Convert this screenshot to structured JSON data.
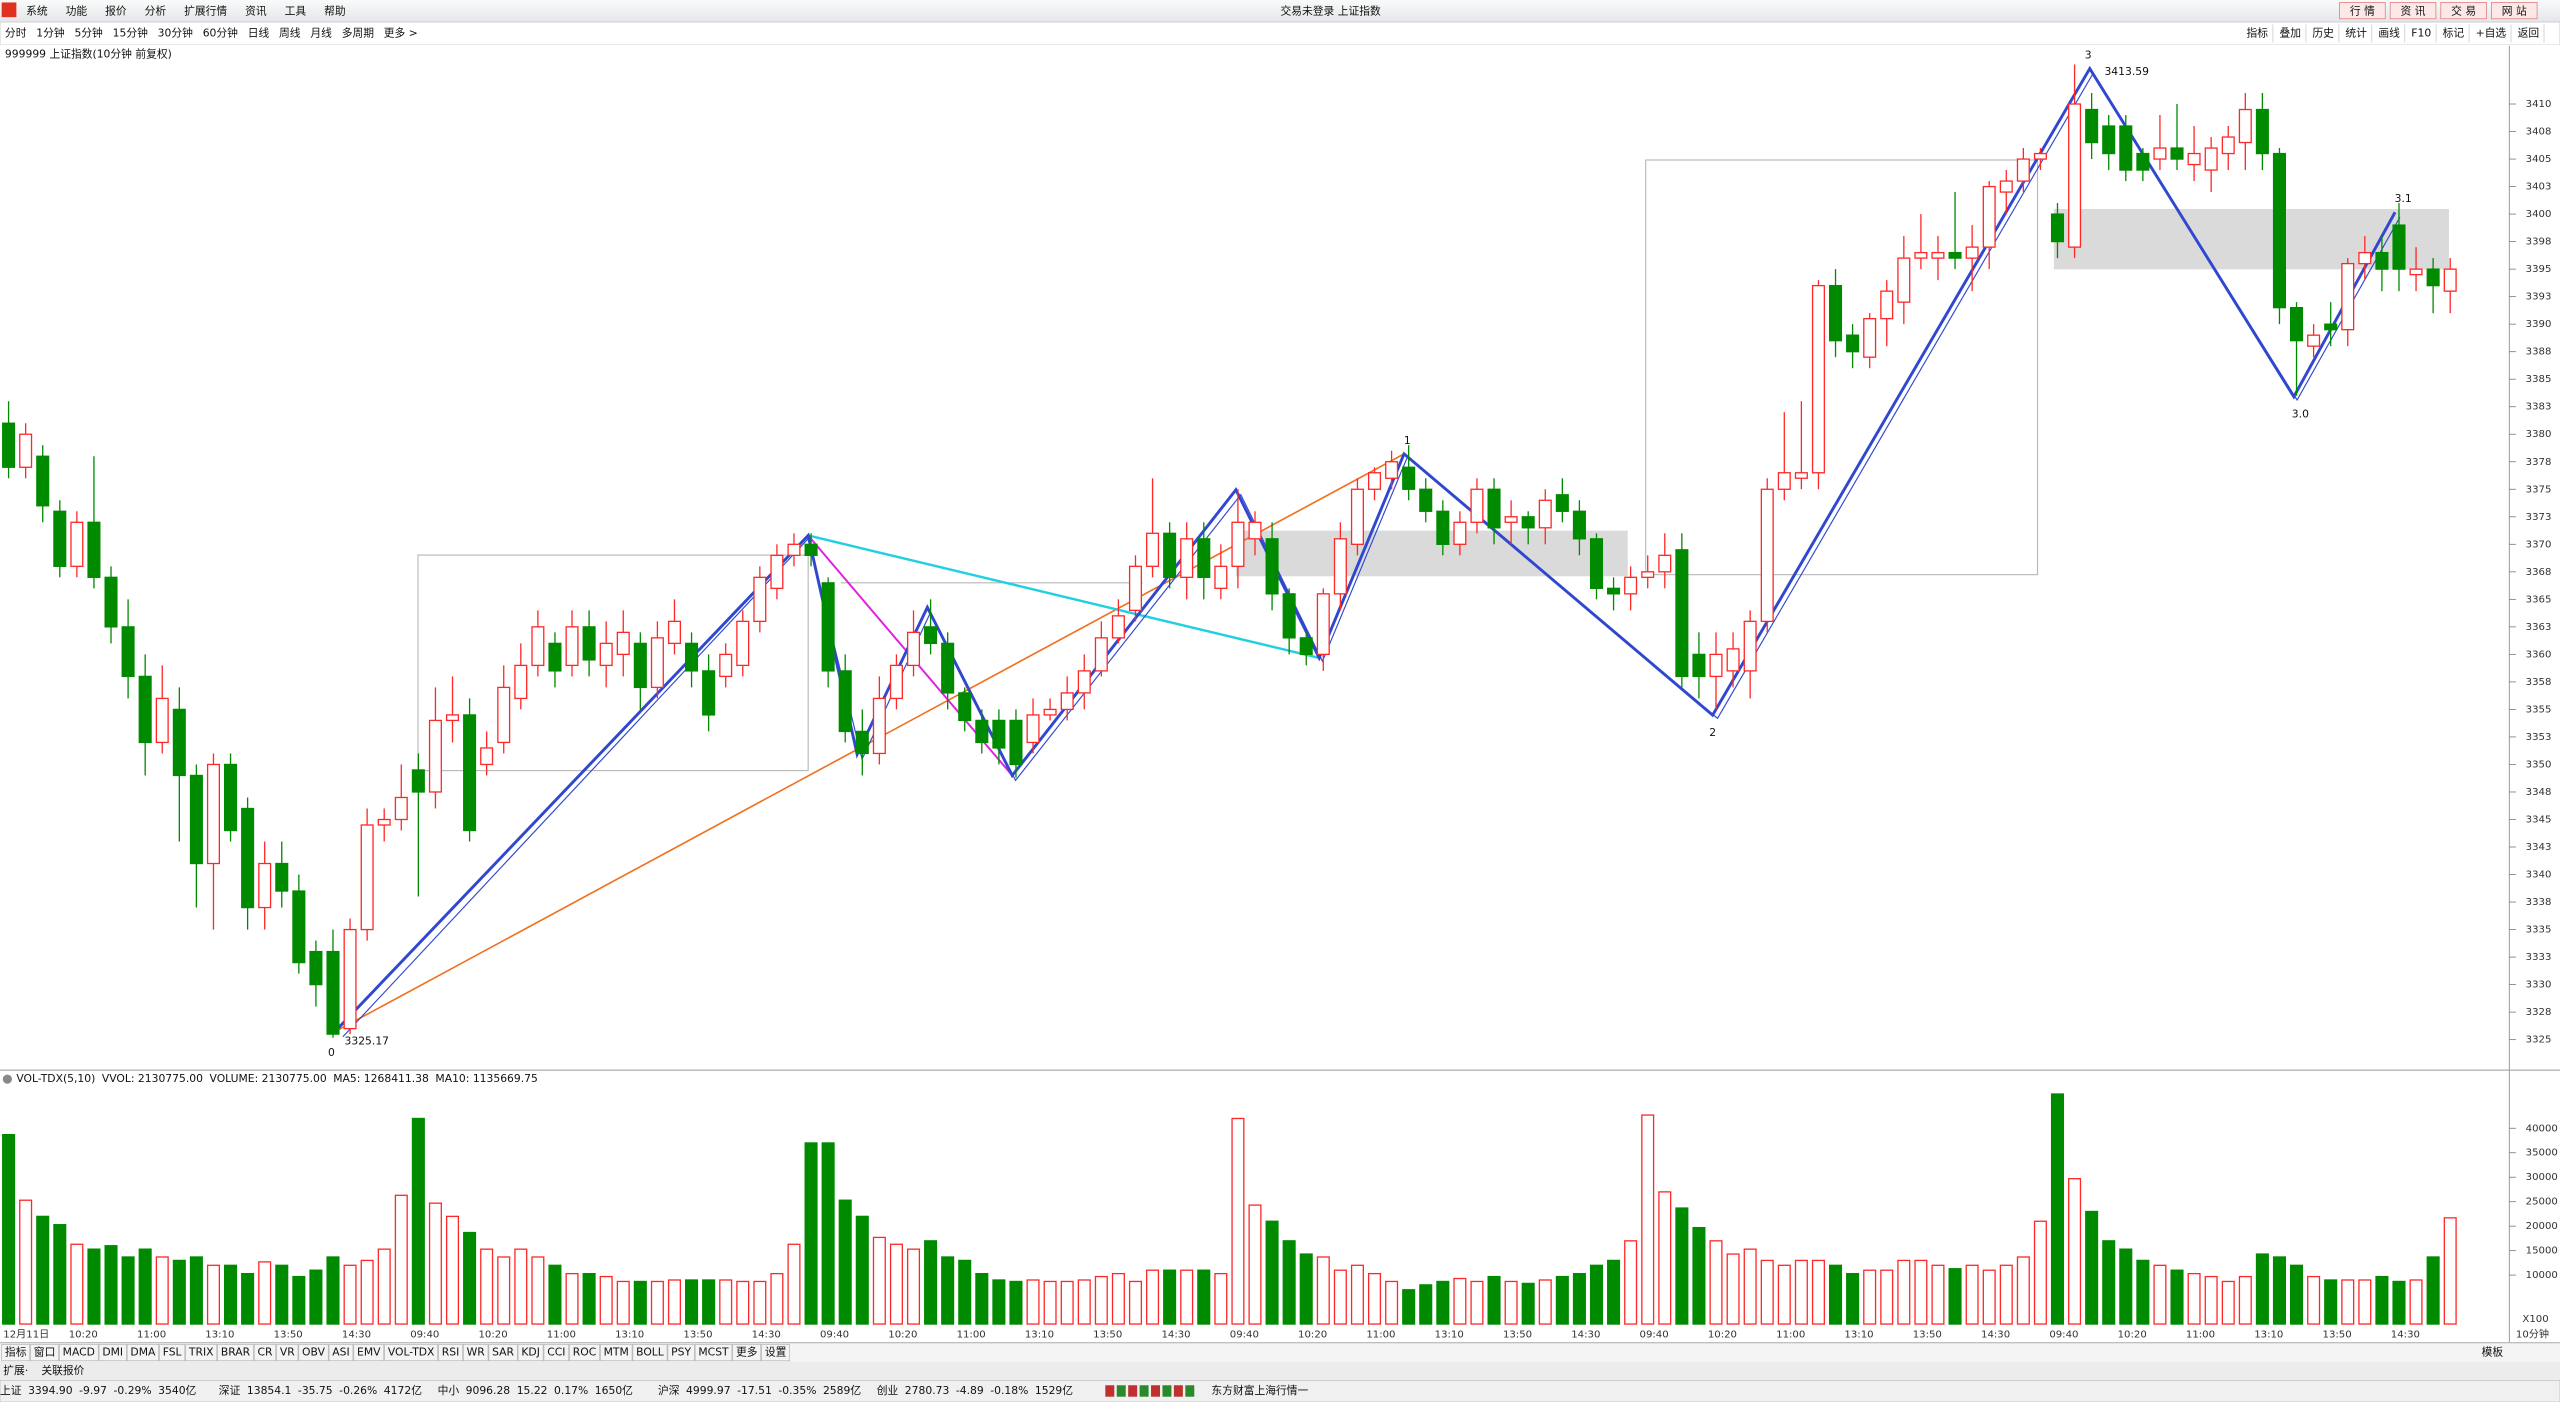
{
  "menu": [
    "系统",
    "功能",
    "报价",
    "分析",
    "扩展行情",
    "资讯",
    "工具",
    "帮助"
  ],
  "login_status": "交易未登录  上证指数",
  "quick_buttons": [
    "行 情",
    "资 讯",
    "交 易",
    "网 站"
  ],
  "periods": [
    "分时",
    "1分钟",
    "5分钟",
    "15分钟",
    "30分钟",
    "60分钟",
    "日线",
    "周线",
    "月线",
    "多周期",
    "更多 >"
  ],
  "tools": [
    "指标",
    "叠加",
    "历史",
    "统计",
    "画线",
    "F10",
    "标记",
    "+自选",
    "返回"
  ],
  "chart_data": [
    {
      "type": "candlestick",
      "title": "999999 上证指数(10分钟 前复权)",
      "up_color": "#ff2828",
      "down_color": "#008a00",
      "categories": [
        "12月11日",
        null,
        null,
        null,
        "10:20",
        null,
        null,
        null,
        "11:00",
        null,
        null,
        null,
        "13:10",
        null,
        null,
        null,
        "13:50",
        null,
        null,
        null,
        "14:30",
        null,
        null,
        null,
        "09:40",
        null,
        null,
        null,
        "10:20",
        null,
        null,
        null,
        "11:00",
        null,
        null,
        null,
        "13:10",
        null,
        null,
        null,
        "13:50",
        null,
        null,
        null,
        "14:30",
        null,
        null,
        null,
        "09:40",
        null,
        null,
        null,
        "10:20",
        null,
        null,
        null,
        "11:00",
        null,
        null,
        null,
        "13:10",
        null,
        null,
        null,
        "13:50",
        null,
        null,
        null,
        "14:30",
        null,
        null,
        null,
        "09:40",
        null,
        null,
        null,
        "10:20",
        null,
        null,
        null,
        "11:00",
        null,
        null,
        null,
        "13:10",
        null,
        null,
        null,
        "13:50",
        null,
        null,
        null,
        "14:30",
        null,
        null,
        null,
        "09:40",
        null,
        null,
        null,
        "10:20",
        null,
        null,
        null,
        "11:00",
        null,
        null,
        null,
        "13:10",
        null,
        null,
        null,
        "13:50",
        null,
        null,
        null,
        "14:30",
        null,
        null,
        null,
        "09:40",
        null,
        null,
        null,
        "10:20",
        null,
        null,
        null,
        "11:00",
        null,
        null,
        null,
        "13:10",
        null,
        null,
        null,
        "13:50",
        null,
        null,
        null,
        "14:30",
        null,
        null,
        null
      ],
      "open": [
        3381,
        3377,
        3378,
        3373,
        3368,
        3372,
        3367,
        3362.5,
        3358,
        3352,
        3355,
        3349,
        3341,
        3350,
        3346,
        3337,
        3341,
        3338.5,
        3333,
        3333,
        3326,
        3335,
        3344.5,
        3345,
        3349.5,
        3347.5,
        3354,
        3354.5,
        3350,
        3352,
        3356,
        3359,
        3361,
        3359,
        3362.5,
        3359,
        3360,
        3361,
        3357,
        3361,
        3361,
        3358.5,
        3358,
        3359,
        3363,
        3366,
        3369,
        3370,
        3366.5,
        3358.5,
        3353,
        3351,
        3356,
        3359,
        3362.5,
        3361,
        3356.5,
        3354,
        3354,
        3354,
        3352,
        3354.5,
        3355,
        3356.5,
        3358.5,
        3361.5,
        3364,
        3368,
        3371,
        3367,
        3370.5,
        3366,
        3368,
        3370.5,
        3370.5,
        3365.5,
        3361.5,
        3360,
        3365.5,
        3370,
        3375,
        3376,
        3377,
        3375,
        3373,
        3370,
        3372,
        3375,
        3372,
        3372.5,
        3371.5,
        3374.5,
        3373,
        3370.5,
        3366,
        3365.5,
        3367,
        3367.5,
        3369.5,
        3360,
        3358,
        3358.5,
        3358.5,
        3363,
        3375,
        3376,
        3376.5,
        3393.5,
        3389,
        3387,
        3390.5,
        3392,
        3396,
        3396,
        3396.5,
        3396,
        3397,
        3402,
        3403,
        3405,
        3400,
        3397,
        3409.5,
        3408,
        3408,
        3405.5,
        3405,
        3406,
        3404.5,
        3404,
        3405.5,
        3406.5,
        3409.5,
        3405.5,
        3391.5,
        3388,
        3390,
        3389.5,
        3395.5,
        3396.5,
        3399,
        3394.5,
        3395,
        3393
      ],
      "high": [
        3383,
        3381,
        3379,
        3374,
        3373,
        3378,
        3368,
        3365,
        3360,
        3359,
        3357,
        3350,
        3351,
        3351,
        3347,
        3343,
        3343,
        3340,
        3334,
        3335,
        3336,
        3346,
        3346,
        3350,
        3351,
        3357,
        3358,
        3356,
        3353,
        3359,
        3361,
        3364,
        3362,
        3364,
        3364,
        3363,
        3364,
        3362,
        3363,
        3365,
        3362,
        3360,
        3361,
        3364,
        3368,
        3370,
        3371,
        3371,
        3367,
        3360,
        3355,
        3358,
        3360,
        3364,
        3365,
        3362,
        3357,
        3355,
        3355,
        3355,
        3356,
        3356,
        3358,
        3360,
        3363,
        3365,
        3369,
        3376,
        3372,
        3372,
        3372,
        3370,
        3375,
        3373,
        3372,
        3366,
        3362,
        3366,
        3372,
        3376,
        3377,
        3378.5,
        3379,
        3376,
        3374,
        3373,
        3376,
        3376,
        3374,
        3373,
        3375,
        3376,
        3374,
        3371,
        3367,
        3368,
        3369,
        3371,
        3371,
        3362,
        3362,
        3362,
        3364,
        3376,
        3382,
        3383,
        3394,
        3395,
        3390,
        3391,
        3394,
        3398,
        3400,
        3398,
        3402,
        3399,
        3403,
        3404,
        3406,
        3406,
        3401,
        3413.59,
        3411,
        3409,
        3409,
        3406,
        3409,
        3410,
        3408,
        3407,
        3408,
        3411,
        3411,
        3406,
        3392,
        3390,
        3392,
        3396,
        3398,
        3398,
        3401,
        3397,
        3396,
        3396
      ],
      "low": [
        3376,
        3376,
        3372,
        3367,
        3367,
        3366,
        3361,
        3356,
        3349,
        3351,
        3343,
        3337,
        3335,
        3343,
        3335,
        3335,
        3337,
        3331,
        3328,
        3325.17,
        3325.5,
        3334,
        3343,
        3344,
        3338,
        3346,
        3352,
        3343,
        3349,
        3351,
        3355,
        3358,
        3357,
        3358,
        3358,
        3357,
        3358,
        3355,
        3356,
        3360,
        3357,
        3353,
        3357,
        3358,
        3362,
        3365,
        3368,
        3368,
        3357,
        3352,
        3349,
        3350,
        3355,
        3358,
        3360,
        3355,
        3353,
        3351,
        3350,
        3348.8,
        3351,
        3354,
        3354,
        3355,
        3358,
        3361,
        3363,
        3367,
        3366,
        3365,
        3365,
        3365,
        3366,
        3369,
        3364,
        3360,
        3359,
        3358.5,
        3364,
        3369,
        3374,
        3375,
        3374,
        3372,
        3369,
        3369,
        3371,
        3370,
        3370,
        3370,
        3370,
        3372,
        3369,
        3365,
        3364,
        3364,
        3366,
        3366,
        3357,
        3356,
        3355,
        3357,
        3356,
        3362,
        3374,
        3375,
        3375,
        3387,
        3386,
        3386,
        3388,
        3390,
        3395,
        3394,
        3395,
        3393,
        3395,
        3400,
        3402,
        3404,
        3396,
        3396,
        3405,
        3404,
        3403,
        3403,
        3404,
        3404,
        3403,
        3402,
        3404,
        3404,
        3404,
        3390,
        3383.5,
        3387,
        3388,
        3388,
        3394,
        3393,
        3393,
        3393,
        3391,
        3391
      ],
      "close": [
        3377,
        3380,
        3373.5,
        3368,
        3372,
        3367,
        3362.5,
        3358,
        3352,
        3356,
        3349,
        3341,
        3350,
        3344,
        3337,
        3341,
        3338.5,
        3332,
        3330,
        3325.5,
        3335,
        3344.5,
        3345,
        3347,
        3347.5,
        3354,
        3354.5,
        3344,
        3351.5,
        3357,
        3359,
        3362.5,
        3358.5,
        3362.5,
        3359.5,
        3361,
        3362,
        3357,
        3361.5,
        3363,
        3358.5,
        3354.5,
        3360,
        3363,
        3367,
        3369,
        3370,
        3369,
        3358.5,
        3353,
        3351,
        3356,
        3359,
        3362,
        3361,
        3356.5,
        3354,
        3352,
        3351.5,
        3350,
        3354.5,
        3355,
        3356.5,
        3358.5,
        3361.5,
        3363.5,
        3368,
        3371,
        3367,
        3370.5,
        3367,
        3368,
        3372,
        3372,
        3365.5,
        3361.5,
        3360,
        3365.5,
        3370.5,
        3375,
        3376.5,
        3377.5,
        3375,
        3373,
        3370,
        3372,
        3375,
        3371.5,
        3372.5,
        3371.5,
        3374,
        3373,
        3370.5,
        3366,
        3365.5,
        3367,
        3367.5,
        3369,
        3358,
        3358,
        3360,
        3360.5,
        3363,
        3375,
        3376.5,
        3376.5,
        3393.5,
        3388.5,
        3387.5,
        3390.5,
        3393,
        3396,
        3396.5,
        3396.5,
        3396,
        3397,
        3402.5,
        3403,
        3405,
        3405.5,
        3397.5,
        3410,
        3406.5,
        3405.5,
        3404,
        3404,
        3406,
        3405,
        3405.5,
        3406,
        3407,
        3409.5,
        3405.5,
        3391.5,
        3388.5,
        3389,
        3389.5,
        3395.5,
        3396.5,
        3395,
        3395,
        3395,
        3393.5,
        3395
      ],
      "ylim": [
        3322.3,
        3415.0
      ],
      "yticks": [
        3325,
        {
          "value": 3327.5,
          "label": "3328"
        },
        3330,
        {
          "value": 3332.5,
          "label": "3333"
        },
        3335,
        {
          "value": 3337.5,
          "label": "3338"
        },
        3340,
        {
          "value": 3342.5,
          "label": "3343"
        },
        3345,
        {
          "value": 3347.5,
          "label": "3348"
        },
        3350,
        {
          "value": 3352.5,
          "label": "3353"
        },
        3355,
        {
          "value": 3357.5,
          "label": "3358"
        },
        3360,
        {
          "value": 3362.5,
          "label": "3363"
        },
        3365,
        {
          "value": 3367.5,
          "label": "3368"
        },
        3370,
        {
          "value": 3372.5,
          "label": "3373"
        },
        3375,
        {
          "value": 3377.5,
          "label": "3378"
        },
        3380,
        {
          "value": 3382.5,
          "label": "3383"
        },
        3385,
        {
          "value": 3387.5,
          "label": "3388"
        },
        3390,
        {
          "value": 3392.5,
          "label": "3393"
        },
        3395,
        {
          "value": 3397.5,
          "label": "3398"
        },
        3400,
        {
          "value": 3402.5,
          "label": "3403"
        },
        3405,
        {
          "value": 3407.5,
          "label": "3408"
        },
        3410
      ],
      "wave_labels": [
        "0",
        "1",
        "2",
        "3",
        "3.0",
        "3.1"
      ],
      "price_labels": [
        "3413.59",
        "3325.17"
      ]
    },
    {
      "type": "bar",
      "title": "VOL-TDX(5,10)",
      "legend": [
        {
          "text": "VVOL: 2130775.00",
          "color": "#2040c0"
        },
        {
          "text": "VOLUME: 2130775.00",
          "color": "#e020e0"
        },
        {
          "text": "MA5: 1268411.38",
          "color": "#e020e0"
        },
        {
          "text": "MA10: 1135669.75",
          "color": "#808080"
        }
      ],
      "values": [
        38700,
        25300,
        22000,
        20300,
        16300,
        15300,
        16000,
        13700,
        15300,
        13700,
        13000,
        13700,
        12000,
        12000,
        10300,
        12700,
        12000,
        9700,
        11000,
        13700,
        12000,
        13000,
        15300,
        26300,
        42000,
        24700,
        22000,
        18700,
        15300,
        13700,
        15300,
        13700,
        12000,
        10300,
        10300,
        9700,
        8700,
        8700,
        8700,
        9000,
        9000,
        9000,
        9000,
        8700,
        8700,
        10300,
        16300,
        37000,
        37000,
        25300,
        22000,
        17700,
        16300,
        15300,
        17000,
        13700,
        13000,
        10300,
        9000,
        8700,
        9000,
        8700,
        8700,
        9000,
        9700,
        10300,
        8700,
        11000,
        11000,
        11000,
        11000,
        10300,
        42000,
        24300,
        21000,
        17000,
        14300,
        13700,
        11000,
        12000,
        10300,
        8700,
        7000,
        8000,
        8700,
        9300,
        8700,
        9700,
        8700,
        8300,
        9000,
        9700,
        10300,
        12000,
        13000,
        17000,
        42700,
        27000,
        23700,
        19700,
        17000,
        14300,
        15300,
        13000,
        12000,
        13000,
        13000,
        12000,
        10300,
        11000,
        11000,
        13000,
        13000,
        12000,
        11300,
        12000,
        11000,
        12000,
        13700,
        21000,
        47000,
        29700,
        23000,
        17000,
        15300,
        13000,
        12000,
        11000,
        10300,
        9700,
        8700,
        9700,
        14300,
        13700,
        12000,
        9700,
        9000,
        9000,
        9000,
        9700,
        8700,
        9000,
        13700,
        21700
      ],
      "ylim": [
        0,
        47700
      ],
      "yticks": [
        10000,
        15000,
        20000,
        25000,
        30000,
        35000,
        40000
      ],
      "multiplier_label": "X100",
      "period_label": "10分钟"
    }
  ],
  "indicator_tabs": [
    "指标",
    "窗口",
    "MACD",
    "DMI",
    "DMA",
    "FSL",
    "TRIX",
    "BRAR",
    "CR",
    "VR",
    "OBV",
    "ASI",
    "EMV",
    "VOL-TDX",
    "RSI",
    "WR",
    "SAR",
    "KDJ",
    "CCI",
    "ROC",
    "MTM",
    "BOLL",
    "PSY",
    "MCST",
    "更多",
    "设置"
  ],
  "selected_tab": 13,
  "template_button": "模板",
  "ext_tabs": [
    "扩展·",
    "关联报价"
  ],
  "status_bar": [
    {
      "name": "上证",
      "price": "3394.90",
      "change": "-9.97",
      "pct": "-0.29%",
      "amount": "3540亿",
      "color": "#008a00"
    },
    {
      "name": "深证",
      "price": "13854.1",
      "change": "-35.75",
      "pct": "-0.26%",
      "amount": "4172亿",
      "color": "#008a00"
    },
    {
      "name": "中小",
      "price": "9096.28",
      "change": "15.22",
      "pct": "0.17%",
      "amount": "1650亿",
      "color": "#e00000"
    },
    {
      "name": "沪深",
      "price": "4999.97",
      "change": "-17.51",
      "pct": "-0.35%",
      "amount": "2589亿",
      "color": "#008a00"
    },
    {
      "name": "创业",
      "price": "2780.73",
      "change": "-4.89",
      "pct": "-0.18%",
      "amount": "1529亿",
      "color": "#008a00"
    }
  ],
  "feed_name": "东方财富上海行情一"
}
